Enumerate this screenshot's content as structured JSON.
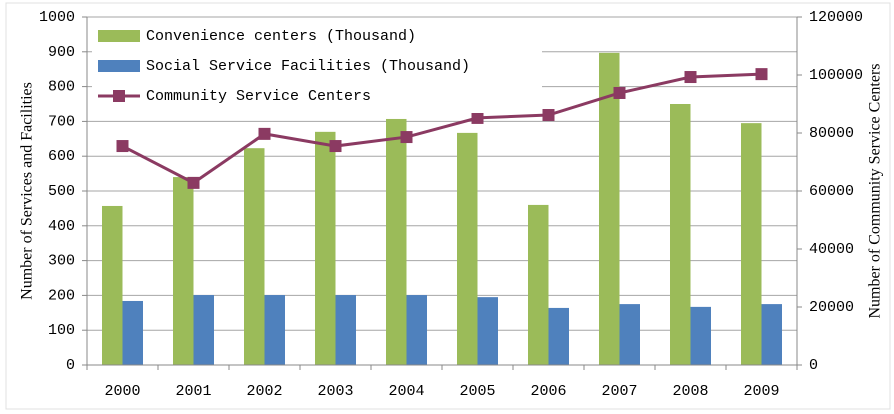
{
  "chart_data": {
    "type": "bar",
    "categories": [
      "2000",
      "2001",
      "2002",
      "2003",
      "2004",
      "2005",
      "2006",
      "2007",
      "2008",
      "2009"
    ],
    "y_label": "Number of Services and Facilities",
    "y2_label": "Number of Community Service Centers",
    "series": [
      {
        "name": "Convenience centers (Thousand)",
        "type": "bar",
        "color": "#9bbb59",
        "values": [
          457,
          540,
          623,
          670,
          707,
          667,
          460,
          897,
          750,
          695
        ]
      },
      {
        "name": "Social Service Facilities (Thousand)",
        "type": "bar",
        "color": "#4f81bd",
        "values": [
          184,
          201,
          201,
          201,
          201,
          195,
          164,
          175,
          167,
          175
        ]
      },
      {
        "name": "Community Service Centers",
        "type": "line",
        "axis": "y2",
        "color": "#8b3a62",
        "values": [
          75500,
          62800,
          79700,
          75500,
          78600,
          85200,
          86200,
          93800,
          99300,
          100300
        ]
      }
    ],
    "ylim": [
      0,
      1000
    ],
    "yticks": [
      0,
      100,
      200,
      300,
      400,
      500,
      600,
      700,
      800,
      900,
      1000
    ],
    "y2lim": [
      0,
      120000
    ],
    "y2ticks": [
      0,
      20000,
      40000,
      60000,
      80000,
      100000,
      120000
    ],
    "grid": true,
    "legend": "top-left"
  }
}
